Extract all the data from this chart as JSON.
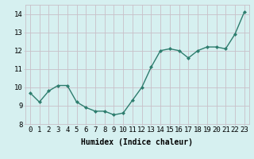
{
  "x": [
    0,
    1,
    2,
    3,
    4,
    5,
    6,
    7,
    8,
    9,
    10,
    11,
    12,
    13,
    14,
    15,
    16,
    17,
    18,
    19,
    20,
    21,
    22,
    23
  ],
  "y": [
    9.7,
    9.2,
    9.8,
    10.1,
    10.1,
    9.2,
    8.9,
    8.7,
    8.7,
    8.5,
    8.6,
    9.3,
    10.0,
    11.1,
    12.0,
    12.1,
    12.0,
    11.6,
    12.0,
    12.2,
    12.2,
    12.1,
    12.9,
    14.1
  ],
  "line_color": "#2e7d6e",
  "marker_color": "#2e7d6e",
  "bg_color": "#d6f0f0",
  "grid_color": "#c8c0c8",
  "xlabel": "Humidex (Indice chaleur)",
  "ylim": [
    8,
    14.5
  ],
  "xlim": [
    -0.5,
    23.5
  ],
  "yticks": [
    8,
    9,
    10,
    11,
    12,
    13,
    14
  ],
  "xticks": [
    0,
    1,
    2,
    3,
    4,
    5,
    6,
    7,
    8,
    9,
    10,
    11,
    12,
    13,
    14,
    15,
    16,
    17,
    18,
    19,
    20,
    21,
    22,
    23
  ],
  "xlabel_fontsize": 7,
  "tick_fontsize": 6.5,
  "line_width": 1.0,
  "marker_size": 2.5
}
